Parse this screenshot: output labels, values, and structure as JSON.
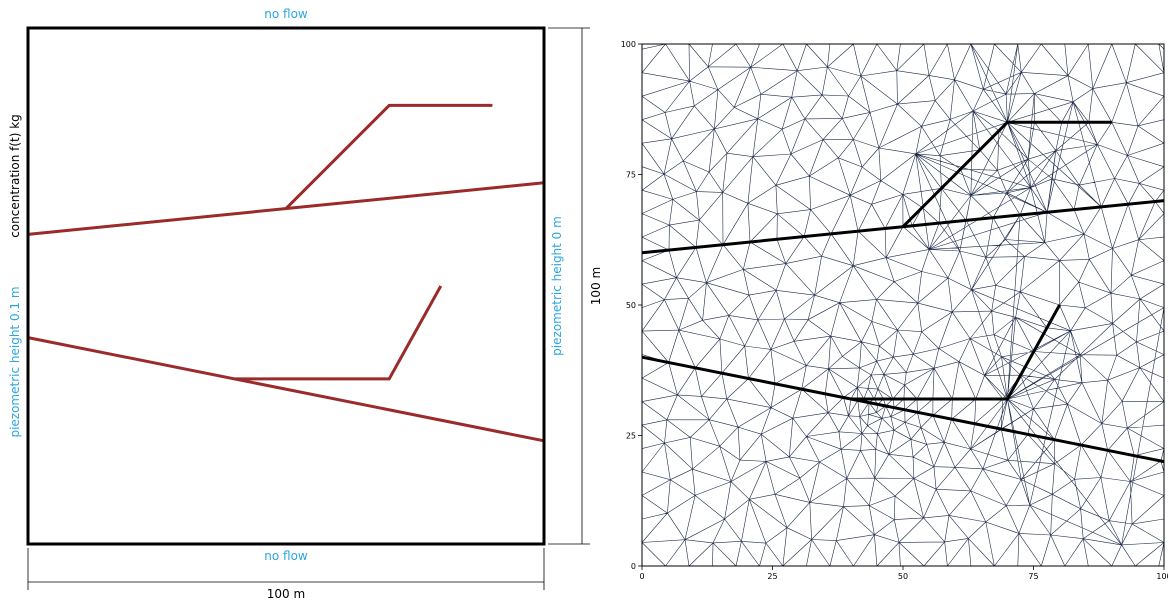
{
  "colors": {
    "boundary_text": "#2aa6e0",
    "fracture_left": "#9b2a2a",
    "fracture_right": "#000000",
    "mesh": "#1c2a4a",
    "border": "#000000"
  },
  "left_panel": {
    "top_bc": "no flow",
    "bottom_bc": "no flow",
    "left_bc": "piezometric height 0.1 m",
    "right_bc": "piezometric height 0 m",
    "source_label": "concentration f(t) kg",
    "width_dim": "100 m",
    "height_dim": "100 m"
  },
  "right_panel": {
    "xticks": [
      "0",
      "25",
      "50",
      "75",
      "100"
    ],
    "yticks": [
      "0",
      "25",
      "50",
      "75",
      "100"
    ]
  },
  "domain": {
    "xmin": 0,
    "xmax": 100,
    "ymin": 0,
    "ymax": 100
  },
  "fractures": [
    [
      [
        0,
        60
      ],
      [
        100,
        70
      ]
    ],
    [
      [
        50,
        65
      ],
      [
        70,
        85
      ],
      [
        90,
        85
      ]
    ],
    [
      [
        0,
        40
      ],
      [
        100,
        20
      ]
    ],
    [
      [
        40,
        32
      ],
      [
        70,
        32
      ],
      [
        80,
        50
      ]
    ]
  ],
  "mesh": {
    "refine_center": [
      45,
      30
    ],
    "base_size": 5.2
  }
}
